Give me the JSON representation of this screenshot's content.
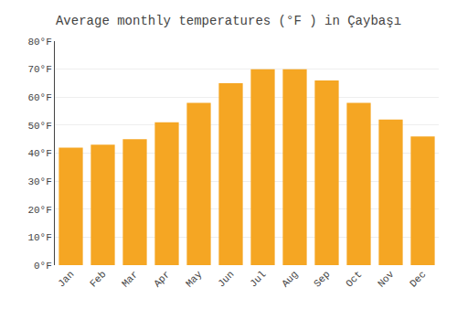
{
  "chart_data": {
    "type": "bar",
    "title": "Average monthly temperatures (°F ) in Çaybaşı",
    "categories": [
      "Jan",
      "Feb",
      "Mar",
      "Apr",
      "May",
      "Jun",
      "Jul",
      "Aug",
      "Sep",
      "Oct",
      "Nov",
      "Dec"
    ],
    "values": [
      42,
      43,
      45,
      51,
      58,
      65,
      70,
      70,
      66,
      58,
      52,
      46
    ],
    "color": "#F5A623",
    "ylim": [
      0,
      80
    ],
    "yticks": [
      {
        "value": 0,
        "label": "0°F"
      },
      {
        "value": 10,
        "label": "10°F"
      },
      {
        "value": 20,
        "label": "20°F"
      },
      {
        "value": 30,
        "label": "30°F"
      },
      {
        "value": 40,
        "label": "40°F"
      },
      {
        "value": 50,
        "label": "50°F"
      },
      {
        "value": 60,
        "label": "60°F"
      },
      {
        "value": 70,
        "label": "70°F"
      },
      {
        "value": 80,
        "label": "80°F"
      }
    ],
    "grid": true
  }
}
